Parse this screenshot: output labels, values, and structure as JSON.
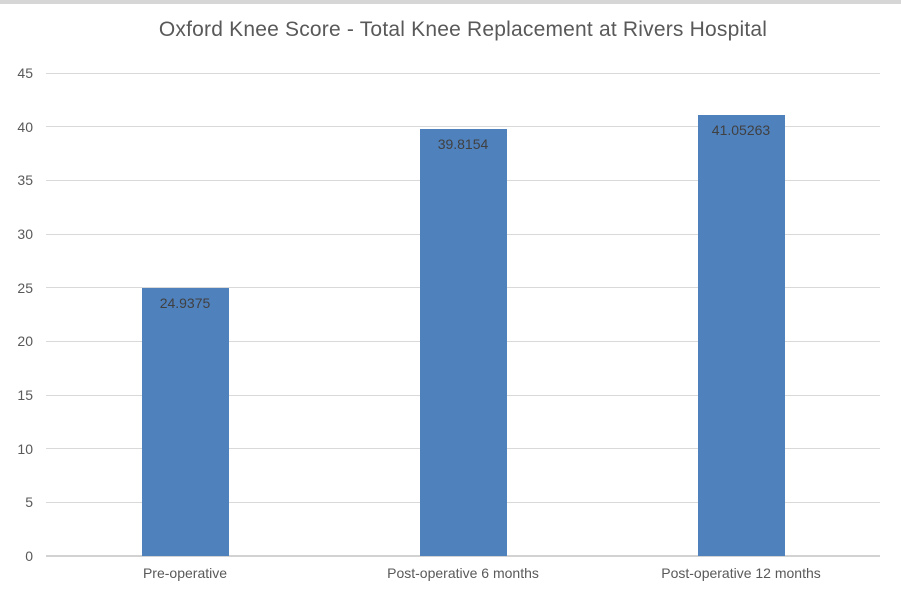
{
  "chart_data": {
    "type": "bar",
    "title": "Oxford Knee Score - Total Knee Replacement at Rivers Hospital",
    "categories": [
      "Pre-operative",
      "Post-operative 6 months",
      "Post-operative 12 months"
    ],
    "values": [
      24.9375,
      39.8154,
      41.05263
    ],
    "data_labels": [
      "24.9375",
      "39.8154",
      "41.05263"
    ],
    "y_ticks": [
      0,
      5,
      10,
      15,
      20,
      25,
      30,
      35,
      40,
      45
    ],
    "ylim": [
      0,
      45
    ],
    "xlabel": "",
    "ylabel": "",
    "grid": true,
    "legend": "none",
    "data_label_position": "inside-end",
    "colors": {
      "bar": "#4f81bd",
      "gridline": "#d9d9d9",
      "axis_baseline": "#d2d2d2",
      "title_text": "#595959",
      "tick_text": "#595959",
      "data_label_text": "#404040",
      "top_strip": "#d6d6d6",
      "background": "#ffffff"
    }
  }
}
